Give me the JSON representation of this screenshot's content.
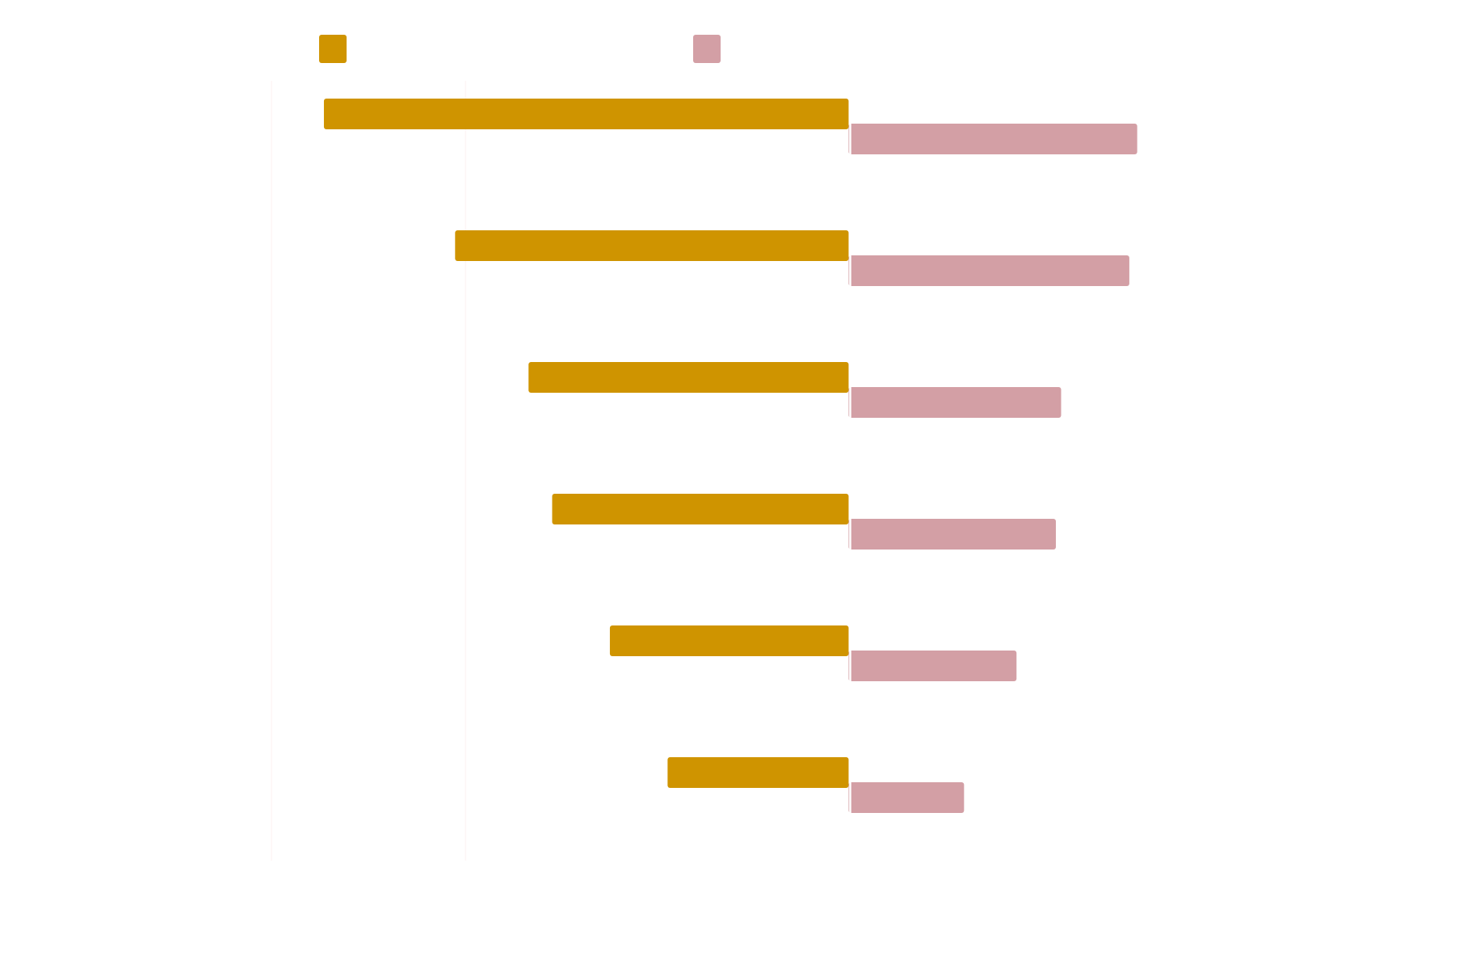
{
  "chart_data": {
    "type": "bar",
    "orientation": "horizontal",
    "layout": "diverging",
    "title": "",
    "xlabel": "",
    "ylabel": "",
    "categories": [
      "",
      "",
      "",
      "",
      "",
      ""
    ],
    "series": [
      {
        "name": "",
        "color": "#CF9400",
        "values": [
          -100,
          -75,
          -61,
          -56.5,
          -45.5,
          -34.5
        ]
      },
      {
        "name": "",
        "color": "#D39FA5",
        "values": [
          55,
          53.5,
          40.5,
          39.5,
          32,
          22
        ]
      }
    ],
    "xlim": [
      -110,
      88
    ],
    "zero_value": 0,
    "gridlines": [
      -110,
      -73
    ],
    "grid": true,
    "legend_position": "top-left"
  },
  "colors": {
    "background": "#ffffff",
    "grid": "#fdf6f6",
    "zero_line": "#ffffff"
  }
}
